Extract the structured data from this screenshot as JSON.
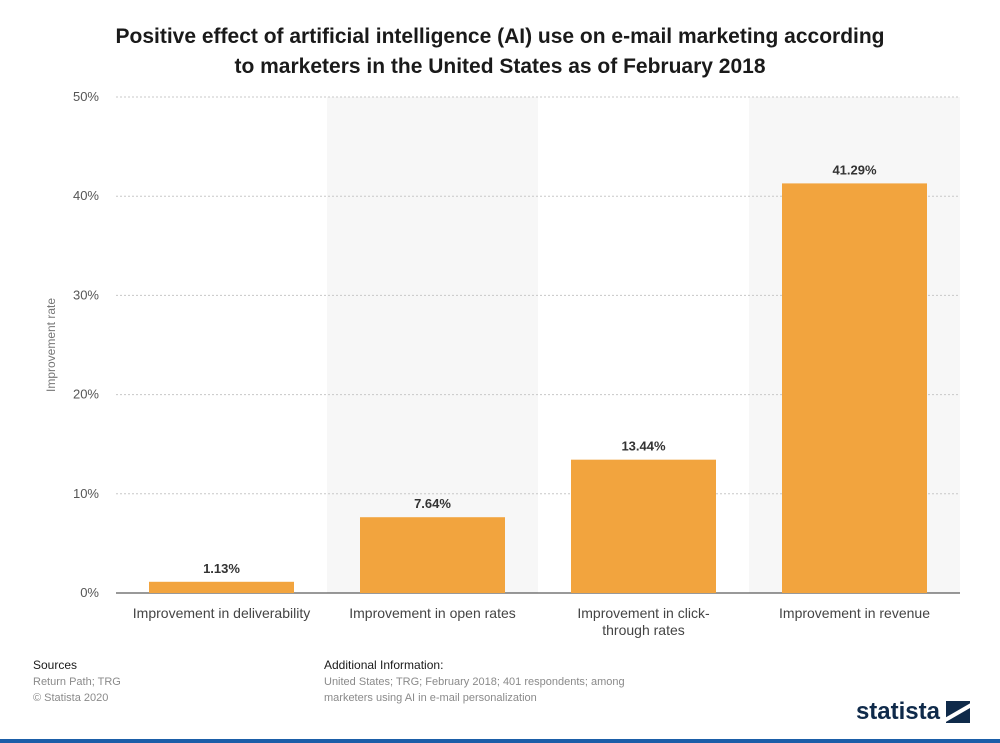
{
  "page": {
    "title_line1": "Positive effect of artificial intelligence (AI) use on e-mail marketing according",
    "title_line2": "to marketers in the United States as of February 2018"
  },
  "chart_data": {
    "type": "bar",
    "title": "Positive effect of artificial intelligence (AI) use on e-mail marketing according to marketers in the United States as of February 2018",
    "xlabel": "",
    "ylabel": "Improvement rate",
    "categories": [
      [
        "Improvement in deliverability"
      ],
      [
        "Improvement in open rates"
      ],
      [
        "Improvement in click-",
        "through rates"
      ],
      [
        "Improvement in revenue"
      ]
    ],
    "values": [
      1.13,
      7.64,
      13.44,
      41.29
    ],
    "value_labels": [
      "1.13%",
      "7.64%",
      "13.44%",
      "41.29%"
    ],
    "ylim": [
      0,
      50
    ],
    "yticks": [
      0,
      10,
      20,
      30,
      40,
      50
    ],
    "ytick_labels": [
      "0%",
      "10%",
      "20%",
      "30%",
      "40%",
      "50%"
    ],
    "grid": true,
    "bar_color": "#f2a43e"
  },
  "footer": {
    "sources_heading": "Sources",
    "sources_line1": "Return Path; TRG",
    "sources_line2": "© Statista 2020",
    "info_heading": "Additional Information:",
    "info_line1": "United States; TRG; February 2018; 401 respondents; among",
    "info_line2": "marketers using AI in e-mail personalization"
  },
  "brand": {
    "logo_text": "statista",
    "logo_color": "#0f2a4a",
    "bar_color": "#1b5ea8"
  }
}
